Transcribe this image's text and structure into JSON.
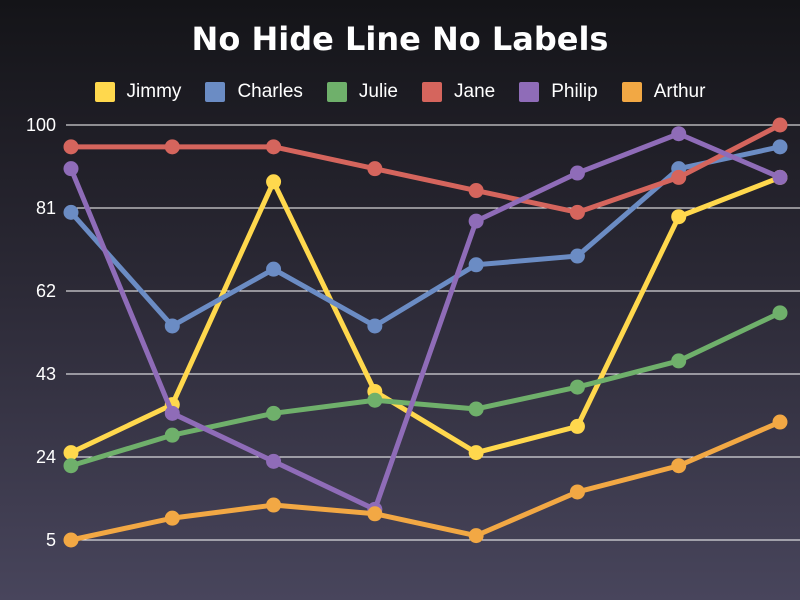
{
  "chart_data": {
    "type": "line",
    "title": "No Hide Line No Labels",
    "xlabel": "",
    "ylabel": "",
    "ylim": [
      5,
      100
    ],
    "yticks": [
      5,
      24,
      43,
      62,
      81,
      100
    ],
    "x": [
      1,
      2,
      3,
      4,
      5,
      6,
      7,
      8
    ],
    "grid": "horizontal",
    "legend_position": "top",
    "series": [
      {
        "name": "Jimmy",
        "color": "#ffd84d",
        "values": [
          25,
          36,
          87,
          39,
          25,
          31,
          79,
          88
        ]
      },
      {
        "name": "Charles",
        "color": "#6b8cc4",
        "values": [
          80,
          54,
          67,
          54,
          68,
          70,
          90,
          95
        ]
      },
      {
        "name": "Julie",
        "color": "#6fb06b",
        "values": [
          22,
          29,
          34,
          37,
          35,
          40,
          46,
          57
        ]
      },
      {
        "name": "Jane",
        "color": "#d5655d",
        "values": [
          95,
          95,
          95,
          90,
          85,
          80,
          88,
          100
        ]
      },
      {
        "name": "Philip",
        "color": "#8f6cb8",
        "values": [
          90,
          34,
          23,
          12,
          78,
          89,
          98,
          88
        ]
      },
      {
        "name": "Arthur",
        "color": "#f2a844",
        "values": [
          5,
          10,
          13,
          11,
          6,
          16,
          22,
          32
        ]
      }
    ]
  }
}
